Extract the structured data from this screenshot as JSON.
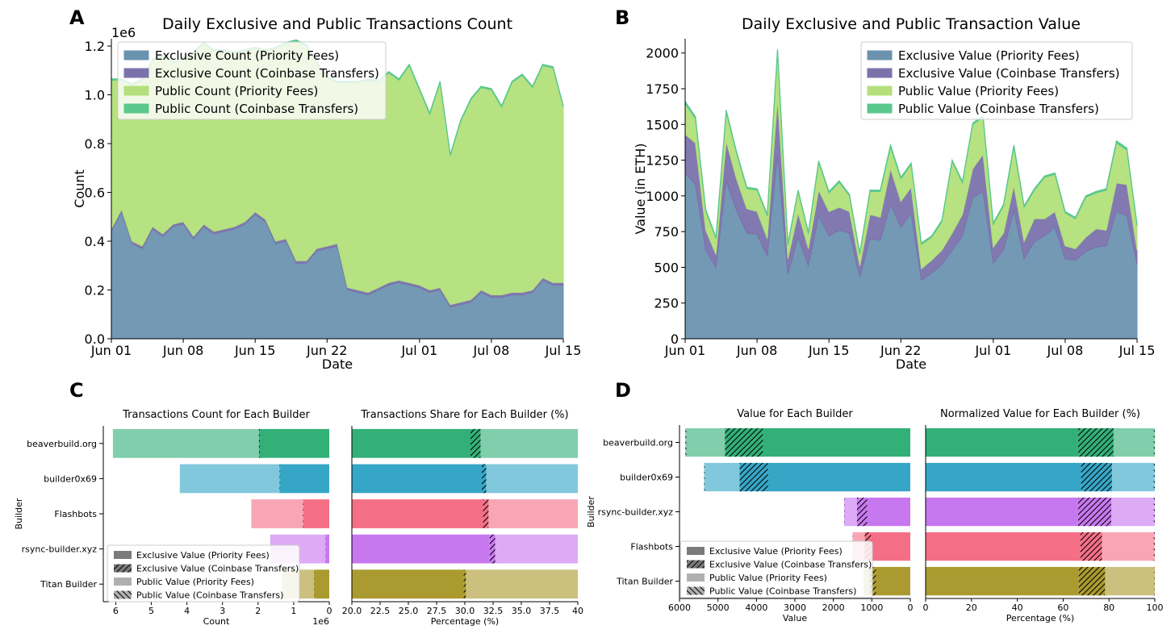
{
  "panel_labels": [
    "A",
    "B",
    "C",
    "D"
  ],
  "chart_data": [
    {
      "id": "A",
      "type": "area",
      "stacked": true,
      "title": "Daily Exclusive and Public Transactions Count",
      "xlabel": "Date",
      "ylabel": "Count",
      "yscale_label": "1e6",
      "ylim": [
        0,
        1.23
      ],
      "yticks": [
        0.0,
        0.2,
        0.4,
        0.6,
        0.8,
        1.0,
        1.2
      ],
      "ytick_labels": [
        "0.0",
        "0.2",
        "0.4",
        "0.6",
        "0.8",
        "1.0",
        "1.2"
      ],
      "xticks": [
        "Jun 01",
        "Jun 08",
        "Jun 15",
        "Jun 22",
        "Jul 01",
        "Jul 08",
        "Jul 15"
      ],
      "xtick_days": [
        0,
        7,
        14,
        21,
        30,
        37,
        44
      ],
      "legend_position": "top-left",
      "x_days": [
        0,
        1,
        2,
        3,
        4,
        5,
        6,
        7,
        8,
        9,
        10,
        11,
        12,
        13,
        14,
        15,
        16,
        17,
        18,
        19,
        20,
        21,
        22,
        23,
        24,
        25,
        26,
        27,
        28,
        29,
        30,
        31,
        32,
        33,
        34,
        35,
        36,
        37,
        38,
        39,
        40,
        41,
        42,
        43,
        44
      ],
      "series": [
        {
          "name": "Exclusive Count (Priority Fees)",
          "color": "#6b93b0",
          "values": [
            0.44,
            0.52,
            0.39,
            0.37,
            0.45,
            0.42,
            0.46,
            0.47,
            0.41,
            0.46,
            0.43,
            0.44,
            0.45,
            0.47,
            0.51,
            0.48,
            0.39,
            0.4,
            0.31,
            0.31,
            0.36,
            0.37,
            0.38,
            0.2,
            0.19,
            0.18,
            0.2,
            0.22,
            0.23,
            0.22,
            0.21,
            0.19,
            0.2,
            0.13,
            0.14,
            0.15,
            0.19,
            0.17,
            0.17,
            0.18,
            0.18,
            0.19,
            0.24,
            0.22,
            0.22
          ]
        },
        {
          "name": "Exclusive Count (Coinbase Transfers)",
          "color": "#7b72ac",
          "values": [
            0.01,
            0.01,
            0.01,
            0.01,
            0.01,
            0.01,
            0.01,
            0.01,
            0.01,
            0.01,
            0.01,
            0.01,
            0.01,
            0.01,
            0.01,
            0.01,
            0.01,
            0.01,
            0.01,
            0.01,
            0.01,
            0.01,
            0.01,
            0.01,
            0.01,
            0.01,
            0.01,
            0.01,
            0.01,
            0.01,
            0.01,
            0.01,
            0.01,
            0.01,
            0.01,
            0.01,
            0.01,
            0.01,
            0.01,
            0.01,
            0.01,
            0.01,
            0.01,
            0.01,
            0.01
          ]
        },
        {
          "name": "Public Count (Priority Fees)",
          "color": "#b3e07a",
          "values": [
            0.61,
            0.53,
            0.64,
            0.68,
            0.68,
            0.73,
            0.66,
            0.67,
            0.75,
            0.74,
            0.74,
            0.73,
            0.71,
            0.7,
            0.67,
            0.69,
            0.79,
            0.8,
            0.9,
            0.88,
            0.76,
            0.69,
            0.66,
            0.84,
            0.85,
            0.87,
            0.84,
            0.86,
            0.82,
            0.89,
            0.8,
            0.72,
            0.84,
            0.61,
            0.74,
            0.82,
            0.83,
            0.84,
            0.77,
            0.86,
            0.89,
            0.83,
            0.87,
            0.88,
            0.72
          ]
        },
        {
          "name": "Public Count (Coinbase Transfers)",
          "color": "#5ac88d",
          "values": [
            0.005,
            0.005,
            0.005,
            0.005,
            0.005,
            0.005,
            0.005,
            0.005,
            0.005,
            0.005,
            0.005,
            0.005,
            0.005,
            0.005,
            0.005,
            0.005,
            0.005,
            0.005,
            0.005,
            0.005,
            0.005,
            0.005,
            0.005,
            0.005,
            0.005,
            0.005,
            0.005,
            0.005,
            0.005,
            0.005,
            0.005,
            0.005,
            0.005,
            0.005,
            0.005,
            0.005,
            0.005,
            0.005,
            0.005,
            0.005,
            0.005,
            0.005,
            0.005,
            0.005,
            0.005
          ]
        }
      ]
    },
    {
      "id": "B",
      "type": "area",
      "stacked": true,
      "title": "Daily Exclusive and Public Transaction Value",
      "xlabel": "Date",
      "ylabel": "Value (in ETH)",
      "ylim": [
        0,
        2100
      ],
      "yticks": [
        0,
        250,
        500,
        750,
        1000,
        1250,
        1500,
        1750,
        2000
      ],
      "ytick_labels": [
        "0",
        "250",
        "500",
        "750",
        "1000",
        "1250",
        "1500",
        "1750",
        "2000"
      ],
      "xticks": [
        "Jun 01",
        "Jun 08",
        "Jun 15",
        "Jun 22",
        "Jul 01",
        "Jul 08",
        "Jul 15"
      ],
      "xtick_days": [
        0,
        7,
        14,
        21,
        30,
        37,
        44
      ],
      "legend_position": "top-right",
      "x_days": [
        0,
        1,
        2,
        3,
        4,
        5,
        6,
        7,
        8,
        9,
        10,
        11,
        12,
        13,
        14,
        15,
        16,
        17,
        18,
        19,
        20,
        21,
        22,
        23,
        24,
        25,
        26,
        27,
        28,
        29,
        30,
        31,
        32,
        33,
        34,
        35,
        36,
        37,
        38,
        39,
        40,
        41,
        42,
        43,
        44
      ],
      "series": [
        {
          "name": "Exclusive Value (Priority Fees)",
          "color": "#6b93b0",
          "values": [
            1160,
            1080,
            620,
            500,
            1100,
            900,
            740,
            730,
            580,
            1290,
            450,
            710,
            510,
            860,
            720,
            760,
            740,
            430,
            700,
            690,
            940,
            780,
            880,
            410,
            460,
            520,
            620,
            720,
            990,
            1030,
            530,
            620,
            900,
            560,
            680,
            720,
            780,
            560,
            550,
            610,
            640,
            650,
            890,
            860,
            520
          ]
        },
        {
          "name": "Exclusive Value (Coinbase Transfers)",
          "color": "#7b72ac",
          "values": [
            270,
            290,
            140,
            90,
            280,
            220,
            170,
            160,
            120,
            390,
            110,
            170,
            120,
            180,
            170,
            160,
            150,
            80,
            170,
            160,
            250,
            180,
            180,
            80,
            90,
            100,
            120,
            150,
            200,
            260,
            110,
            120,
            170,
            120,
            160,
            120,
            110,
            90,
            80,
            100,
            130,
            110,
            200,
            220,
            100
          ]
        },
        {
          "name": "Public Value (Priority Fees)",
          "color": "#b3e07a",
          "values": [
            215,
            170,
            135,
            110,
            205,
            180,
            140,
            150,
            160,
            325,
            95,
            150,
            105,
            195,
            130,
            175,
            110,
            80,
            160,
            180,
            150,
            160,
            160,
            170,
            160,
            200,
            500,
            220,
            310,
            260,
            160,
            190,
            270,
            240,
            200,
            290,
            260,
            230,
            210,
            280,
            250,
            280,
            280,
            240,
            170
          ]
        },
        {
          "name": "Public Value (Coinbase Transfers)",
          "color": "#5ac88d",
          "values": [
            15,
            15,
            10,
            10,
            15,
            10,
            10,
            10,
            10,
            20,
            10,
            10,
            10,
            10,
            10,
            10,
            10,
            10,
            10,
            10,
            15,
            10,
            10,
            10,
            10,
            10,
            10,
            10,
            10,
            10,
            10,
            10,
            15,
            10,
            10,
            10,
            10,
            10,
            10,
            10,
            10,
            10,
            15,
            15,
            10
          ]
        }
      ]
    },
    {
      "id": "C-left",
      "type": "bar",
      "orientation": "horizontal",
      "title": "Transactions Count for Each Builder",
      "xlabel": "Count",
      "ylabel": "Builder",
      "xscale_label": "1e6",
      "x_inverted": true,
      "xlim": [
        6.35,
        0
      ],
      "xticks": [
        6,
        5,
        4,
        3,
        2,
        1,
        0
      ],
      "xtick_labels": [
        "6",
        "5",
        "4",
        "3",
        "2",
        "1",
        "0"
      ],
      "categories": [
        "beaverbuild.org",
        "builder0x69",
        "Flashbots",
        "rsync-builder.xyz",
        "Titan Builder"
      ],
      "series": [
        {
          "name": "Exclusive Value (Priority Fees)",
          "values": [
            1.95,
            1.38,
            0.72,
            0.1,
            0.42
          ]
        },
        {
          "name": "Exclusive Value (Coinbase Transfers)",
          "values": [
            0.03,
            0.02,
            0.02,
            0.01,
            0.01
          ]
        },
        {
          "name": "Public Value (Priority Fees)",
          "values": [
            4.1,
            2.8,
            1.45,
            1.55,
            0.9
          ]
        },
        {
          "name": "Public Value (Coinbase Transfers)",
          "values": [
            0.0,
            0.0,
            0.0,
            0.0,
            0.0
          ]
        }
      ],
      "colors": [
        "#32b078",
        "#36a6c6",
        "#f46f86",
        "#c878ef",
        "#ab9a2f"
      ],
      "legend_position": "lower-left"
    },
    {
      "id": "C-right",
      "type": "bar",
      "orientation": "horizontal",
      "title": "Transactions Share for Each Builder (%)",
      "xlabel": "Percentage (%)",
      "xlim": [
        20,
        40
      ],
      "xticks": [
        20,
        22.5,
        25,
        27.5,
        30,
        32.5,
        35,
        37.5,
        40
      ],
      "xtick_labels": [
        "20.0",
        "22.5",
        "25.0",
        "27.5",
        "30.0",
        "32.5",
        "35.0",
        "37.5",
        "40"
      ],
      "categories": [
        "beaverbuild.org",
        "builder0x69",
        "Flashbots",
        "rsync-builder.xyz",
        "Titan Builder"
      ],
      "series": [
        {
          "name": "Exclusive Value (Priority Fees)",
          "values": [
            30.5,
            31.5,
            31.6,
            32.2,
            29.9
          ]
        },
        {
          "name": "Exclusive Value (Coinbase Transfers)",
          "values": [
            0.9,
            0.4,
            0.5,
            0.5,
            0.2
          ]
        },
        {
          "name": "Public Value (Priority Fees)",
          "values": [
            68.6,
            68.1,
            67.9,
            67.3,
            69.9
          ]
        },
        {
          "name": "Public Value (Coinbase Transfers)",
          "values": [
            0.0,
            0.0,
            0.0,
            0.0,
            0.0
          ]
        }
      ]
    },
    {
      "id": "D-left",
      "type": "bar",
      "orientation": "horizontal",
      "title": "Value for Each Builder",
      "xlabel": "Value",
      "ylabel": "Builder",
      "x_inverted": true,
      "xlim": [
        6000,
        0
      ],
      "xticks": [
        6000,
        5000,
        4000,
        3000,
        2000,
        1000,
        0
      ],
      "xtick_labels": [
        "6000",
        "5000",
        "4000",
        "3000",
        "2000",
        "1000",
        "0"
      ],
      "categories": [
        "beaverbuild.org",
        "builder0x69",
        "rsync-builder.xyz",
        "Flashbots",
        "Titan Builder"
      ],
      "series": [
        {
          "name": "Exclusive Value (Priority Fees)",
          "values": [
            3830,
            3700,
            1120,
            1020,
            890
          ]
        },
        {
          "name": "Exclusive Value (Coinbase Transfers)",
          "values": [
            990,
            740,
            270,
            170,
            170
          ]
        },
        {
          "name": "Public Value (Priority Fees)",
          "values": [
            1000,
            900,
            320,
            300,
            150
          ]
        },
        {
          "name": "Public Value (Coinbase Transfers)",
          "values": [
            30,
            20,
            10,
            10,
            5
          ]
        }
      ],
      "colors": [
        "#32b078",
        "#36a6c6",
        "#c878ef",
        "#f46f86",
        "#ab9a2f"
      ],
      "legend_position": "lower-left"
    },
    {
      "id": "D-right",
      "type": "bar",
      "orientation": "horizontal",
      "title": "Normalized Value for Each Builder (%)",
      "xlabel": "Percentage (%)",
      "xlim": [
        0,
        100
      ],
      "xticks": [
        0,
        20,
        40,
        60,
        80,
        100
      ],
      "xtick_labels": [
        "0",
        "20",
        "40",
        "60",
        "80",
        "100"
      ],
      "categories": [
        "beaverbuild.org",
        "builder0x69",
        "rsync-builder.xyz",
        "Flashbots",
        "Titan Builder"
      ],
      "series": [
        {
          "name": "Exclusive Value (Priority Fees)",
          "values": [
            66.5,
            67.8,
            66.5,
            67.5,
            66.8
          ]
        },
        {
          "name": "Exclusive Value (Coinbase Transfers)",
          "values": [
            15.5,
            13.5,
            14.5,
            9.5,
            11.5
          ]
        },
        {
          "name": "Public Value (Priority Fees)",
          "values": [
            17.5,
            18.2,
            18.5,
            22.5,
            21.5
          ]
        },
        {
          "name": "Public Value (Coinbase Transfers)",
          "values": [
            0.5,
            0.5,
            0.5,
            0.5,
            0.2
          ]
        }
      ]
    }
  ]
}
